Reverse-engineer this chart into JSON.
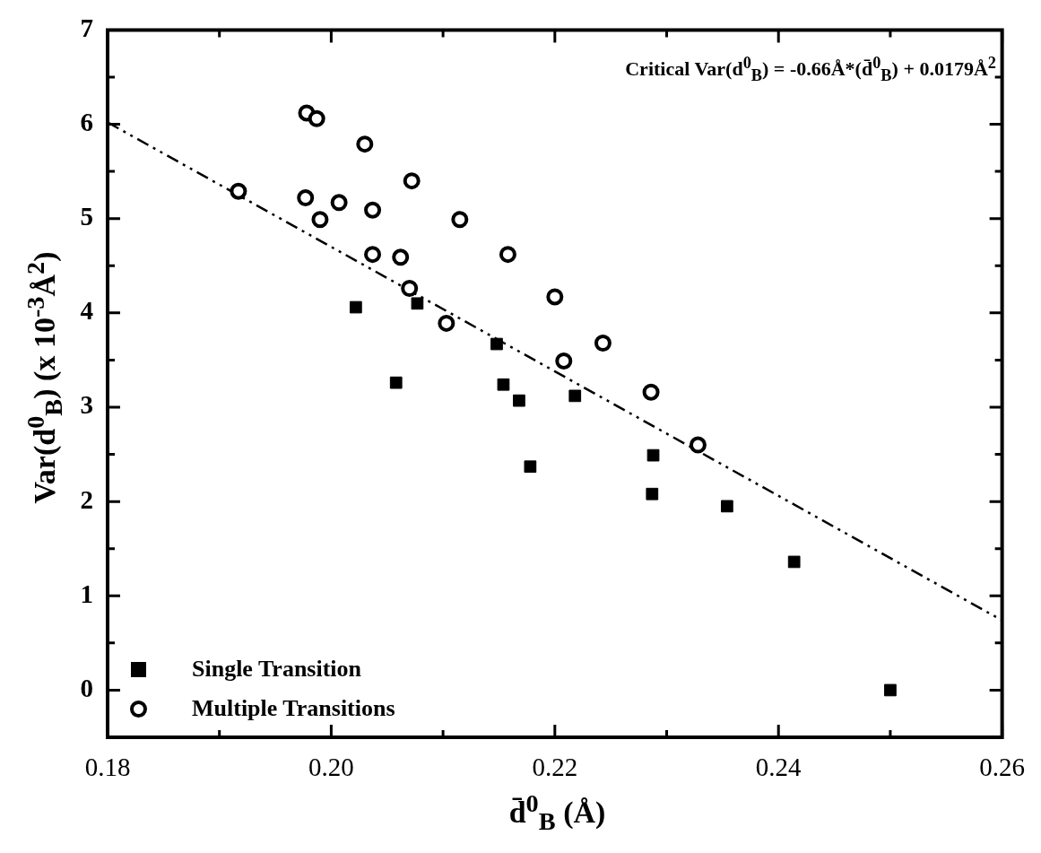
{
  "chart_data": {
    "type": "scatter",
    "xlabel": "d̄$^{0}$$_{B}$ (Å)",
    "ylabel": "Var(d$^{0}$$_{B}$) (x 10$^{-3}$Å$^{2}$)",
    "annotations": [
      "Critical Var(d$^{0}$$_{B}$) = -0.66Å*(d̄$^{0}$$_{B}$) + 0.0179Å$^{2}$"
    ],
    "xlim": [
      0.18,
      0.26
    ],
    "ylim": [
      -0.5,
      7
    ],
    "xticks": [
      0.18,
      {
        "value": 0.19,
        "label": null
      },
      {
        "value": 0.2,
        "label": "0.20"
      },
      {
        "value": 0.21,
        "label": null
      },
      0.22,
      {
        "value": 0.23,
        "label": null
      },
      0.24,
      {
        "value": 0.25,
        "label": null
      },
      0.26
    ],
    "yticks": [
      0,
      {
        "value": 0.5,
        "label": null
      },
      1,
      {
        "value": 1.5,
        "label": null
      },
      2,
      {
        "value": 2.5,
        "label": null
      },
      3,
      {
        "value": 3.5,
        "label": null
      },
      4,
      {
        "value": 4.5,
        "label": null
      },
      5,
      {
        "value": 5.5,
        "label": null
      },
      6,
      {
        "value": 6.5,
        "label": null
      },
      7
    ],
    "legend": "bottom left",
    "series": [
      {
        "name": "Single Transition",
        "marker": "square",
        "color": "#000000",
        "x": [
          0.2022,
          0.2077,
          0.2148,
          0.2058,
          0.2154,
          0.2168,
          0.2218,
          0.2178,
          0.2288,
          0.2287,
          0.2354,
          0.2414,
          0.25
        ],
        "values": [
          4.06,
          4.1,
          3.67,
          3.26,
          3.24,
          3.07,
          3.12,
          2.37,
          2.49,
          2.08,
          1.95,
          1.36,
          0
        ]
      },
      {
        "name": "Multiple Transitions",
        "marker": "circle",
        "color": "#000000",
        "x": [
          0.1978,
          0.1987,
          0.203,
          0.2072,
          0.1917,
          0.1977,
          0.2007,
          0.2037,
          0.199,
          0.2115,
          0.2037,
          0.2062,
          0.2158,
          0.207,
          0.22,
          0.2103,
          0.2208,
          0.2243,
          0.2286,
          0.2328
        ],
        "values": [
          6.12,
          6.06,
          5.79,
          5.4,
          5.29,
          5.22,
          5.17,
          5.09,
          4.99,
          4.99,
          4.62,
          4.59,
          4.62,
          4.26,
          4.17,
          3.89,
          3.49,
          3.68,
          3.16,
          2.6
        ]
      },
      {
        "type": "line",
        "marker": "none",
        "line_style": "dashed",
        "color": "#000000",
        "x": [
          0.18,
          0.26
        ],
        "values": [
          6.02,
          0.74
        ]
      }
    ]
  }
}
